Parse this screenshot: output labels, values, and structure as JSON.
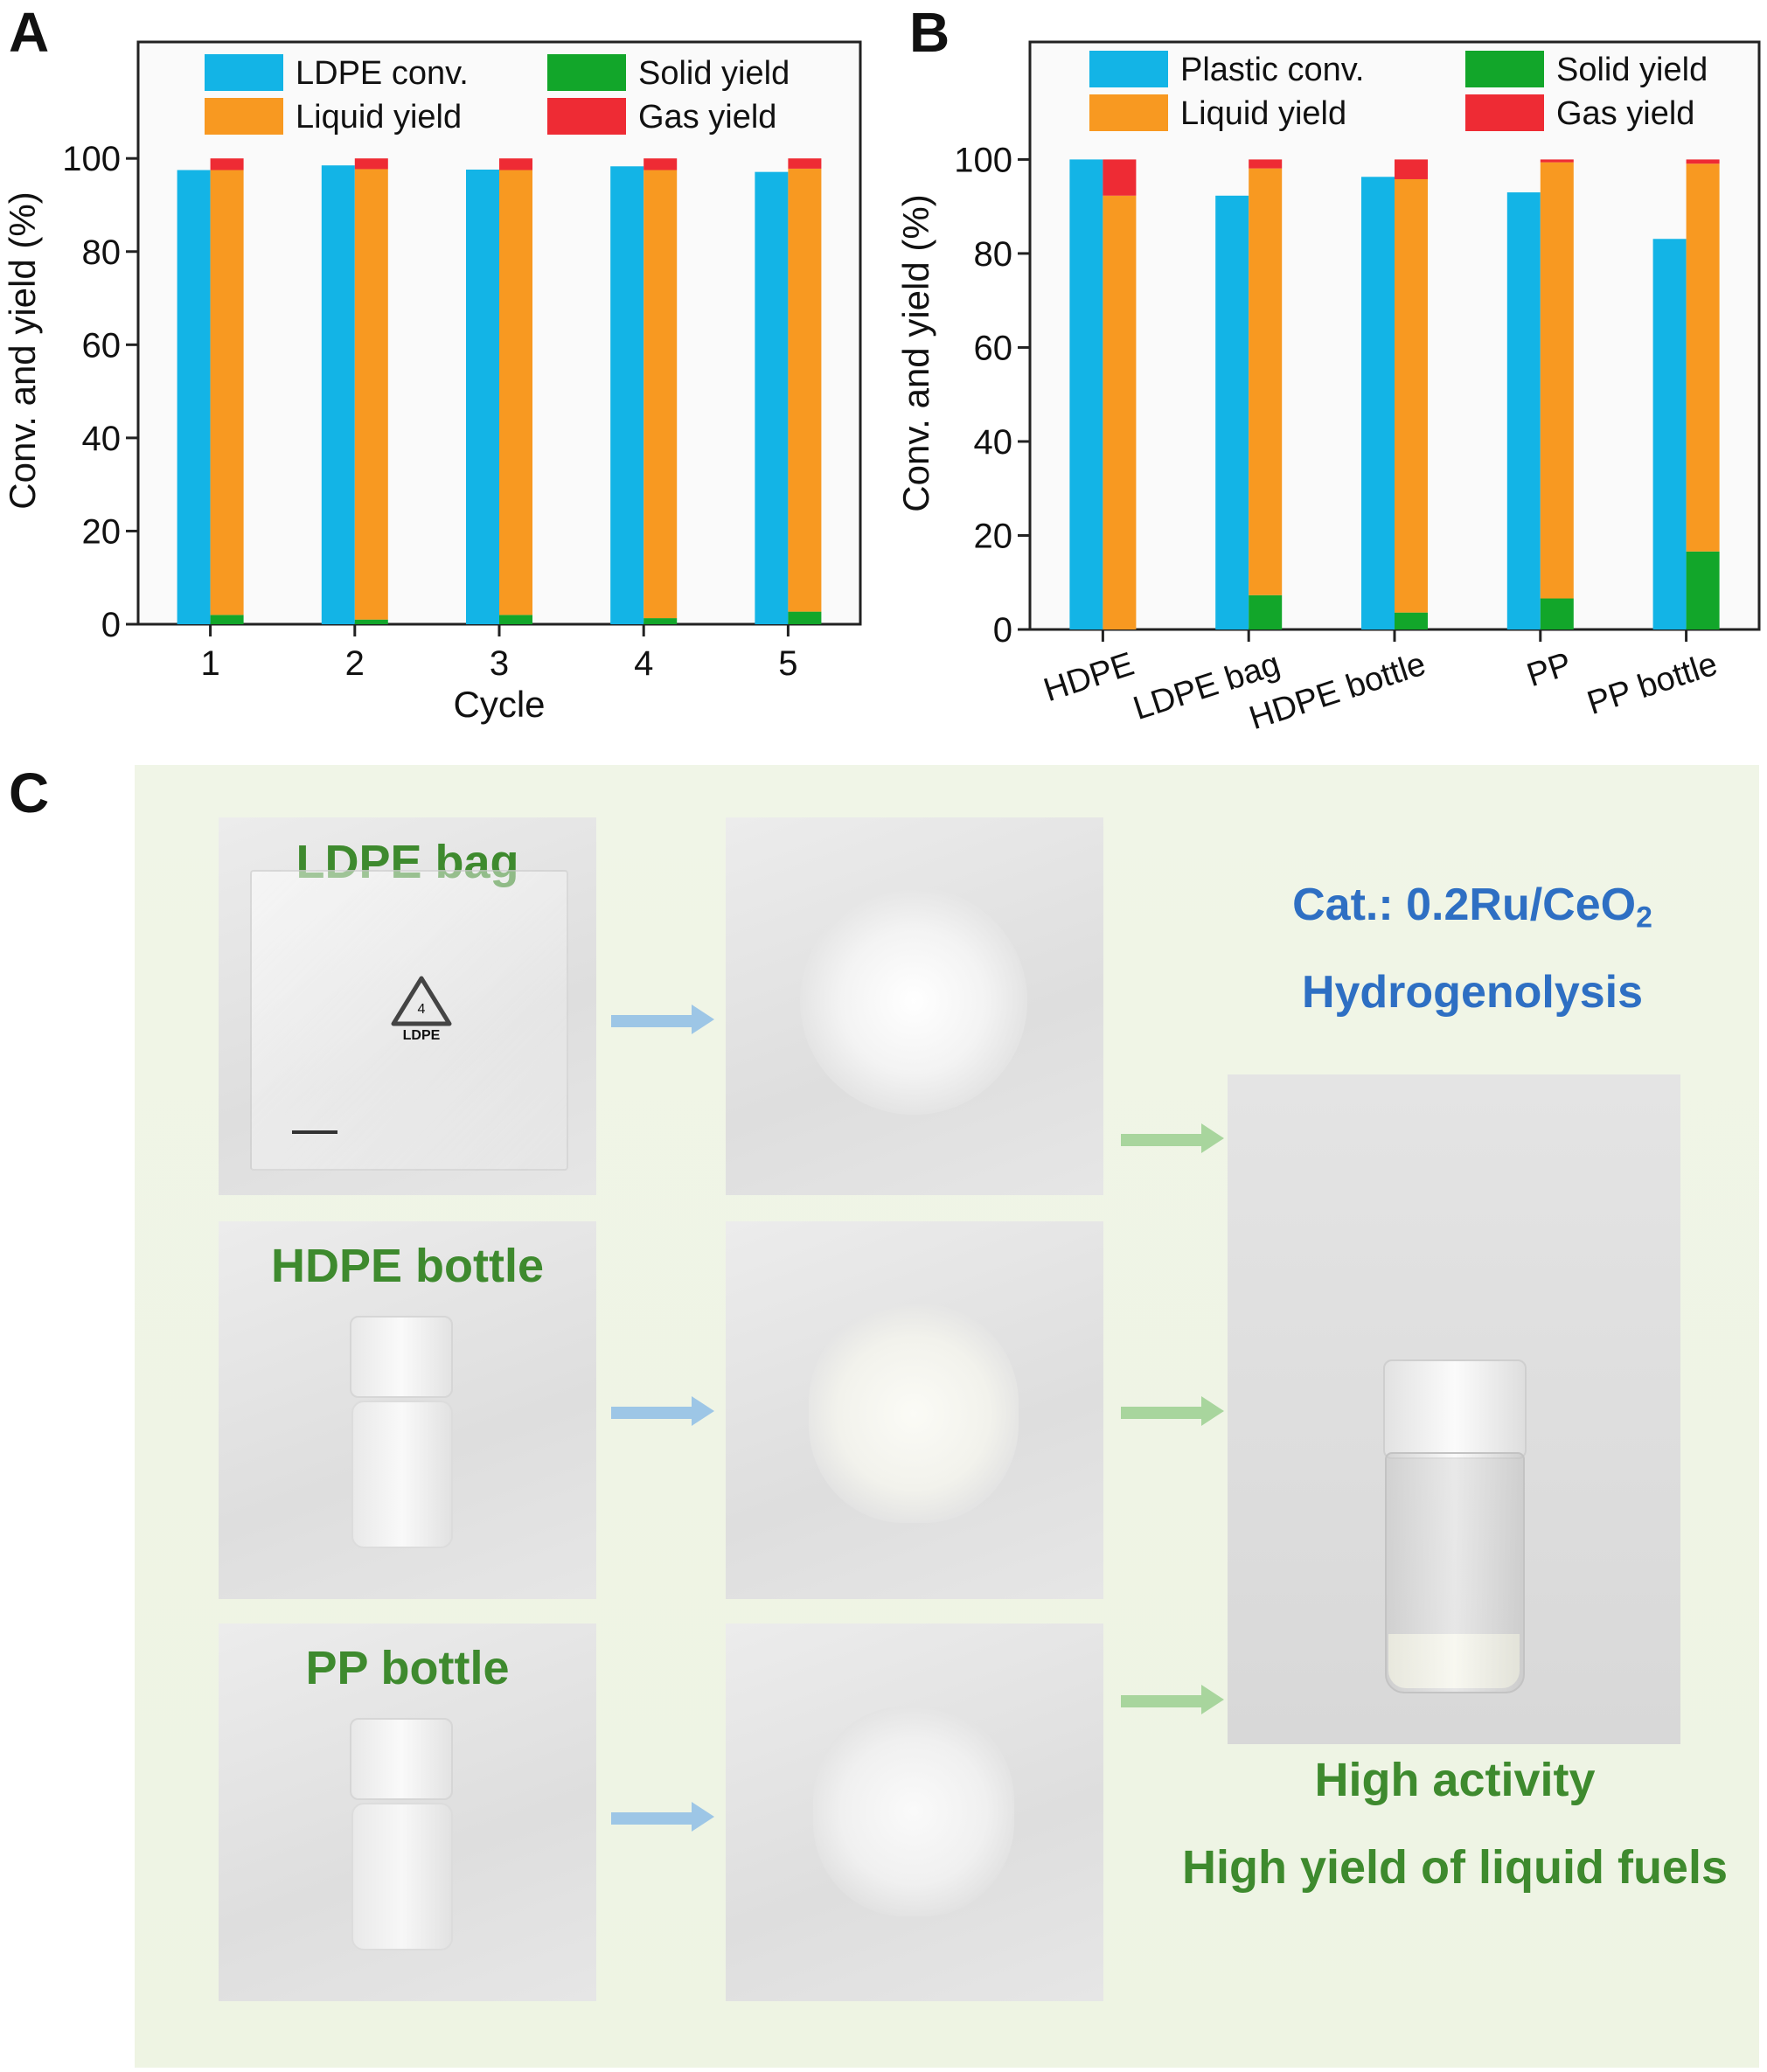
{
  "panels": {
    "a": "A",
    "b": "B",
    "c": "C"
  },
  "colors": {
    "conversion": "#13b4e6",
    "liquid": "#f89921",
    "solid": "#12a62a",
    "gas": "#ee2b34"
  },
  "chart_data": [
    {
      "type": "bar",
      "panel": "A",
      "xlabel": "Cycle",
      "ylabel": "Conv. and yield (%)",
      "ylim": [
        0,
        125
      ],
      "yticks": [
        0,
        20,
        40,
        60,
        80,
        100
      ],
      "categories": [
        "1",
        "2",
        "3",
        "4",
        "5"
      ],
      "legend": [
        "LDPE conv.",
        "Solid yield",
        "Liquid yield",
        "Gas yield"
      ],
      "legend_placement": "top",
      "series": [
        {
          "name": "LDPE conv.",
          "values": [
            97.5,
            98.5,
            97.6,
            98.3,
            97.1
          ]
        },
        {
          "name": "Solid yield",
          "values": [
            2.0,
            1.0,
            2.0,
            1.3,
            2.7
          ]
        },
        {
          "name": "Liquid yield",
          "values": [
            95.5,
            96.7,
            95.5,
            96.2,
            95.1
          ]
        },
        {
          "name": "Gas yield",
          "values": [
            2.5,
            2.3,
            2.5,
            2.5,
            2.2
          ]
        }
      ]
    },
    {
      "type": "bar",
      "panel": "B",
      "xlabel": "",
      "ylabel": "Conv. and yield (%)",
      "ylim": [
        0,
        125
      ],
      "yticks": [
        0,
        20,
        40,
        60,
        80,
        100
      ],
      "categories": [
        "HDPE",
        "LDPE bag",
        "HDPE bottle",
        "PP",
        "PP bottle"
      ],
      "legend": [
        "Plastic conv.",
        "Solid yield",
        "Liquid yield",
        "Gas yield"
      ],
      "legend_placement": "top",
      "series": [
        {
          "name": "Plastic conv.",
          "values": [
            100,
            92.3,
            96.3,
            93.0,
            83.1
          ]
        },
        {
          "name": "Solid yield",
          "values": [
            0,
            7.3,
            3.6,
            6.6,
            16.6
          ]
        },
        {
          "name": "Liquid yield",
          "values": [
            92.3,
            90.8,
            92.2,
            92.8,
            82.5
          ]
        },
        {
          "name": "Gas yield",
          "values": [
            7.7,
            1.9,
            4.2,
            0.6,
            0.9
          ]
        }
      ]
    }
  ],
  "panel_c": {
    "rows": [
      {
        "label": "LDPE bag"
      },
      {
        "label": "HDPE bottle"
      },
      {
        "label": "PP bottle"
      }
    ],
    "recycle_symbol": {
      "number": "4",
      "code": "LDPE"
    },
    "catalyst_prefix": "Cat.: 0.2Ru/CeO",
    "catalyst_subscript": "2",
    "process": "Hydrogenolysis",
    "result_line1": "High activity",
    "result_line2": "High yield of liquid fuels"
  }
}
